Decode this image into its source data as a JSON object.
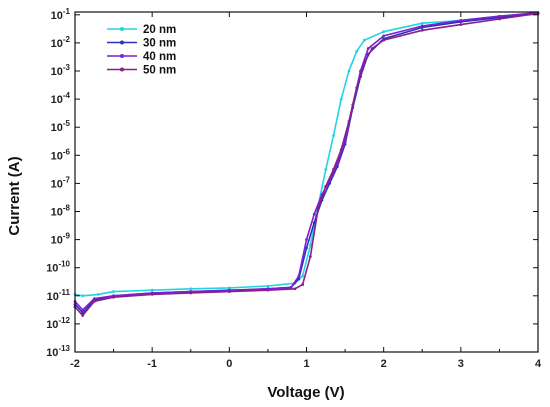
{
  "chart_data": {
    "type": "line",
    "xlabel": "Voltage (V)",
    "ylabel": "Current (A)",
    "xlim": [
      -2,
      4
    ],
    "ylim_log10": [
      -13,
      -0.9
    ],
    "y_scale": "log",
    "x_ticks": [
      "-2",
      "-1",
      "0",
      "1",
      "2",
      "3",
      "4"
    ],
    "y_tick_exponents": [
      "-13",
      "-12",
      "-11",
      "-10",
      "-9",
      "-8",
      "-7",
      "-6",
      "-5",
      "-4",
      "-3",
      "-2",
      "-1"
    ],
    "y_tick_base": "10",
    "grid": false,
    "legend_position": "top-left",
    "series": [
      {
        "name": "20 nm",
        "color": "#22d3e6",
        "x": [
          -2.0,
          -1.9,
          -1.7,
          -1.5,
          -1.0,
          -0.5,
          0.0,
          0.5,
          0.85,
          0.95,
          1.05,
          1.15,
          1.25,
          1.35,
          1.45,
          1.55,
          1.65,
          1.75,
          2.0,
          2.5,
          3.0,
          3.5,
          4.0
        ],
        "log10": [
          -10.95,
          -11.0,
          -10.95,
          -10.85,
          -10.8,
          -10.75,
          -10.72,
          -10.65,
          -10.55,
          -10.3,
          -9.2,
          -7.8,
          -6.5,
          -5.3,
          -4.0,
          -3.0,
          -2.3,
          -1.9,
          -1.6,
          -1.3,
          -1.2,
          -1.05,
          -0.98
        ]
      },
      {
        "name": "30 nm",
        "color": "#2b33b8",
        "x": [
          -2.0,
          -1.9,
          -1.75,
          -1.5,
          -1.0,
          -0.5,
          0.0,
          0.5,
          0.8,
          0.9,
          1.0,
          1.1,
          1.2,
          1.3,
          1.4,
          1.5,
          1.6,
          1.7,
          1.8,
          2.0,
          2.5,
          3.0,
          3.5,
          4.0
        ],
        "log10": [
          -11.3,
          -11.6,
          -11.15,
          -11.0,
          -10.9,
          -10.85,
          -10.8,
          -10.75,
          -10.7,
          -10.4,
          -9.3,
          -8.4,
          -7.6,
          -7.0,
          -6.4,
          -5.6,
          -4.3,
          -3.2,
          -2.4,
          -1.85,
          -1.45,
          -1.25,
          -1.1,
          -0.95
        ]
      },
      {
        "name": "40 nm",
        "color": "#7a1fd6",
        "x": [
          -2.0,
          -1.9,
          -1.75,
          -1.5,
          -1.0,
          -0.5,
          0.0,
          0.5,
          0.8,
          0.9,
          1.0,
          1.1,
          1.2,
          1.3,
          1.4,
          1.5,
          1.6,
          1.7,
          1.8,
          2.0,
          2.5,
          3.0,
          3.5,
          4.0
        ],
        "log10": [
          -11.2,
          -11.5,
          -11.1,
          -11.0,
          -10.9,
          -10.85,
          -10.82,
          -10.75,
          -10.7,
          -10.3,
          -9.0,
          -8.1,
          -7.4,
          -6.9,
          -6.3,
          -5.5,
          -4.2,
          -3.0,
          -2.2,
          -1.75,
          -1.4,
          -1.2,
          -1.05,
          -0.92
        ]
      },
      {
        "name": "50 nm",
        "color": "#8a1e8c",
        "x": [
          -2.0,
          -1.9,
          -1.75,
          -1.5,
          -1.0,
          -0.5,
          0.0,
          0.5,
          0.85,
          0.95,
          1.05,
          1.15,
          1.25,
          1.35,
          1.45,
          1.55,
          1.65,
          1.75,
          1.85,
          2.0,
          2.5,
          3.0,
          3.5,
          4.0
        ],
        "log10": [
          -11.4,
          -11.7,
          -11.2,
          -11.05,
          -10.95,
          -10.9,
          -10.85,
          -10.8,
          -10.75,
          -10.6,
          -9.6,
          -7.9,
          -7.1,
          -6.5,
          -5.8,
          -4.8,
          -3.6,
          -2.7,
          -2.2,
          -1.9,
          -1.55,
          -1.35,
          -1.15,
          -0.95
        ]
      }
    ]
  }
}
